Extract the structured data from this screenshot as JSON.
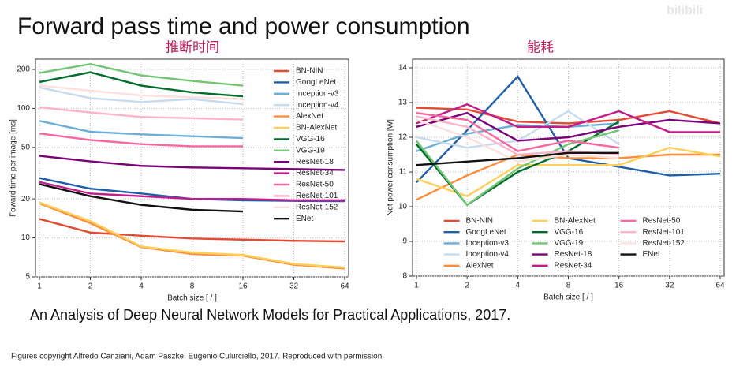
{
  "title": "Forward pass time and power consumption",
  "annotations": [
    "推断时间",
    "能耗"
  ],
  "caption": "An Analysis of Deep Neural Network Models for Practical Applications, 2017.",
  "footnote": "Figures copyright Alfredo Canziani, Adam Paszke, Eugenio Culurciello, 2017. Reproduced with permission.",
  "watermark": "bilibili",
  "chart_data": [
    {
      "type": "line",
      "xlabel": "Batch size [ / ]",
      "ylabel": "Foward time per image [ms]",
      "x": [
        1,
        2,
        4,
        8,
        16,
        32,
        64
      ],
      "xscale": "log2",
      "yscale": "log",
      "xlim": [
        1,
        64
      ],
      "xticks": [
        1,
        2,
        4,
        8,
        16,
        32,
        64
      ],
      "ylim": [
        5,
        240
      ],
      "yticks": [
        5,
        10,
        20,
        50,
        100,
        200
      ],
      "grid": true,
      "legend": "upper right",
      "legend_ncol": 1,
      "series": [
        {
          "name": "BN-NIN",
          "color": "#e34a33",
          "values": [
            14,
            11,
            10.4,
            9.9,
            9.7,
            9.5,
            9.4
          ]
        },
        {
          "name": "GoogLeNet",
          "color": "#1f5fa8",
          "values": [
            29,
            24,
            22,
            20,
            19.5,
            19.3,
            19.2
          ]
        },
        {
          "name": "Inception-v3",
          "color": "#6baed6",
          "values": [
            80,
            66,
            63,
            61,
            59,
            null,
            null
          ]
        },
        {
          "name": "Inception-v4",
          "color": "#c6dbef",
          "values": [
            145,
            120,
            112,
            118,
            108,
            null,
            null
          ]
        },
        {
          "name": "AlexNet",
          "color": "#fd8d3c",
          "values": [
            18.5,
            13,
            8.5,
            7.5,
            7.3,
            6.2,
            5.8
          ]
        },
        {
          "name": "BN-AlexNet",
          "color": "#fdd05a",
          "values": [
            18.8,
            13.5,
            8.6,
            7.7,
            7.4,
            6.3,
            5.9
          ]
        },
        {
          "name": "VGG-16",
          "color": "#006d2c",
          "values": [
            160,
            190,
            150,
            133,
            124,
            null,
            null
          ]
        },
        {
          "name": "VGG-19",
          "color": "#74c476",
          "values": [
            188,
            220,
            180,
            163,
            150,
            null,
            null
          ]
        },
        {
          "name": "ResNet-18",
          "color": "#7a0177",
          "values": [
            43,
            39,
            36,
            35,
            34.5,
            34,
            33.5
          ]
        },
        {
          "name": "ResNet-34",
          "color": "#c51b8a",
          "values": [
            27,
            22,
            21,
            20,
            20,
            19.5,
            19.5
          ]
        },
        {
          "name": "ResNet-50",
          "color": "#f768a1",
          "values": [
            64,
            57,
            53,
            51,
            51,
            null,
            null
          ]
        },
        {
          "name": "ResNet-101",
          "color": "#fbb4c9",
          "values": [
            102,
            93,
            86,
            84,
            82,
            null,
            null
          ]
        },
        {
          "name": "ResNet-152",
          "color": "#fde0dd",
          "values": [
            150,
            137,
            126,
            122,
            118,
            null,
            null
          ]
        },
        {
          "name": "ENet",
          "color": "#111111",
          "values": [
            26,
            21,
            18,
            16.5,
            16,
            null,
            null
          ]
        }
      ]
    },
    {
      "type": "line",
      "xlabel": "Batch size [ / ]",
      "ylabel": "Net power consumption [W]",
      "x": [
        1,
        2,
        4,
        8,
        16,
        32,
        64
      ],
      "xscale": "log2",
      "yscale": "linear",
      "xlim": [
        1,
        64
      ],
      "xticks": [
        1,
        2,
        4,
        8,
        16,
        32,
        64
      ],
      "ylim": [
        8,
        14.25
      ],
      "yticks": [
        8,
        9,
        10,
        11,
        12,
        13,
        14
      ],
      "grid": true,
      "legend": "lower center",
      "legend_ncol": 3,
      "series": [
        {
          "name": "BN-NIN",
          "color": "#e34a33",
          "values": [
            12.85,
            12.8,
            12.45,
            12.4,
            12.5,
            12.75,
            12.4
          ]
        },
        {
          "name": "GoogLeNet",
          "color": "#1f5fa8",
          "values": [
            10.7,
            12.2,
            13.75,
            11.4,
            11.15,
            10.9,
            10.95
          ]
        },
        {
          "name": "Inception-v3",
          "color": "#6baed6",
          "values": [
            11.6,
            12.1,
            12.35,
            12.3,
            12.4,
            null,
            null
          ]
        },
        {
          "name": "Inception-v4",
          "color": "#c6dbef",
          "values": [
            12.0,
            11.7,
            11.9,
            12.75,
            11.8,
            null,
            null
          ]
        },
        {
          "name": "AlexNet",
          "color": "#fd8d3c",
          "values": [
            10.2,
            10.9,
            11.5,
            11.4,
            11.4,
            11.5,
            11.5
          ]
        },
        {
          "name": "BN-AlexNet",
          "color": "#fdd05a",
          "values": [
            10.8,
            10.3,
            11.2,
            11.2,
            11.2,
            11.7,
            11.45
          ]
        },
        {
          "name": "VGG-16",
          "color": "#006d2c",
          "values": [
            11.8,
            10.05,
            11.0,
            11.6,
            12.45,
            null,
            null
          ]
        },
        {
          "name": "VGG-19",
          "color": "#74c476",
          "values": [
            11.9,
            10.05,
            11.1,
            11.8,
            12.2,
            null,
            null
          ]
        },
        {
          "name": "ResNet-18",
          "color": "#7a0177",
          "values": [
            12.3,
            12.7,
            11.9,
            12.0,
            12.3,
            12.5,
            12.4
          ]
        },
        {
          "name": "ResNet-34",
          "color": "#c51b8a",
          "values": [
            12.4,
            12.95,
            12.3,
            12.3,
            12.75,
            12.15,
            12.15
          ]
        },
        {
          "name": "ResNet-50",
          "color": "#f768a1",
          "values": [
            12.7,
            12.5,
            11.6,
            11.9,
            11.7,
            null,
            null
          ]
        },
        {
          "name": "ResNet-101",
          "color": "#fbb4c9",
          "values": [
            12.6,
            12.3,
            11.5,
            11.6,
            11.5,
            null,
            null
          ]
        },
        {
          "name": "ResNet-152",
          "color": "#fde0dd",
          "values": [
            12.5,
            12.0,
            11.3,
            11.5,
            11.4,
            null,
            null
          ]
        },
        {
          "name": "ENet",
          "color": "#111111",
          "values": [
            11.2,
            11.3,
            11.4,
            11.55,
            11.55,
            null,
            null
          ]
        }
      ]
    }
  ]
}
